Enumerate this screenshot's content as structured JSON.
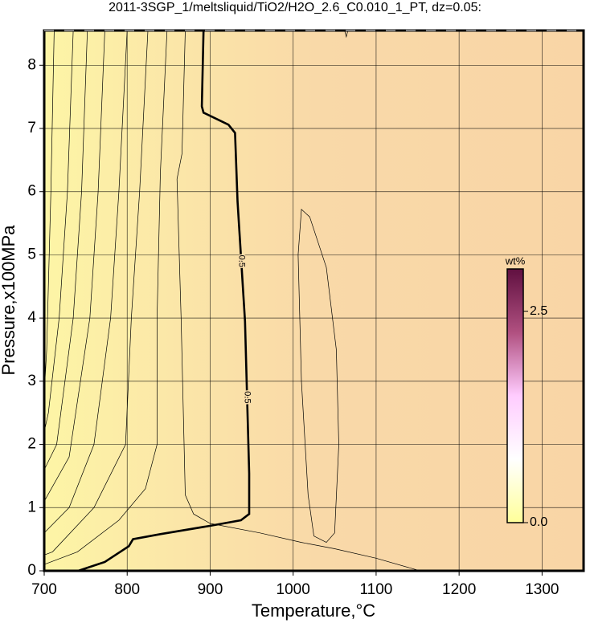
{
  "chart_data": {
    "type": "contour",
    "title": "2011-3SGP_1/meltsliquid/TiO2/H2O_2.6_C0.010_1_PT, dz=0.05:",
    "x_label": "Temperature,°C",
    "y_label": "Pressure,x100MPa",
    "xlim": [
      700,
      1350
    ],
    "ylim": [
      0,
      8.55
    ],
    "xticks": [
      700,
      800,
      900,
      1000,
      1100,
      1200,
      1300
    ],
    "yticks": [
      0,
      1,
      2,
      3,
      4,
      5,
      6,
      7,
      8
    ],
    "grid": true,
    "contours": [
      {
        "level": 0.5,
        "color": "#000000",
        "x": [
          741,
          773,
          802,
          807,
          840,
          899,
          937,
          947,
          947,
          942,
          933,
          930,
          922,
          892,
          890,
          892
        ],
        "y": [
          0,
          0.14,
          0.39,
          0.5,
          0.58,
          0.71,
          0.8,
          0.9,
          1.54,
          3.95,
          5.85,
          6.93,
          7.06,
          7.25,
          7.35,
          8.55
        ]
      },
      {
        "x": [
          712,
          708,
          703,
          700
        ],
        "y": [
          8.55,
          6,
          3.5,
          2.8
        ]
      },
      {
        "x": [
          735,
          728,
          718,
          705,
          700
        ],
        "y": [
          8.55,
          6,
          4,
          2.5,
          2.2
        ]
      },
      {
        "x": [
          752,
          745,
          735,
          715,
          700
        ],
        "y": [
          8.55,
          6,
          4,
          2,
          1.6
        ]
      },
      {
        "x": [
          773,
          765,
          755,
          730,
          700
        ],
        "y": [
          8.55,
          6,
          4,
          1.8,
          1.1
        ]
      },
      {
        "x": [
          800,
          790,
          780,
          760,
          730,
          700
        ],
        "y": [
          8.55,
          6,
          4,
          2,
          1,
          0.6
        ]
      },
      {
        "x": [
          825,
          815,
          805,
          798,
          760,
          710,
          700
        ],
        "y": [
          8.55,
          6,
          4,
          2,
          1,
          0.3,
          0.25
        ]
      },
      {
        "x": [
          848,
          840,
          836,
          836,
          822,
          790,
          740,
          700
        ],
        "y": [
          8.55,
          6.3,
          4,
          2,
          1.3,
          0.8,
          0.3,
          0.1
        ]
      },
      {
        "x": [
          870,
          866,
          860,
          865,
          870,
          880,
          900,
          960,
          1010,
          1050,
          1100,
          1153
        ],
        "y": [
          8.55,
          6.6,
          6.2,
          4,
          1.2,
          0.9,
          0.75,
          0.6,
          0.45,
          0.35,
          0.2,
          0
        ]
      },
      {
        "x": [
          1050,
          1055,
          1052,
          1040,
          1020,
          1010,
          1006,
          1010,
          1018,
          1025,
          1040,
          1050
        ],
        "y": [
          0.6,
          2,
          3.5,
          4.8,
          5.6,
          5.72,
          5,
          3,
          1.2,
          0.55,
          0.45,
          0.6
        ]
      },
      {
        "x": [
          1062,
          1064,
          1066
        ],
        "y": [
          8.55,
          8.45,
          8.55
        ]
      }
    ],
    "colorbar": {
      "label": "wt%",
      "clim": [
        0,
        3.0
      ],
      "ticks": [
        {
          "value": 0,
          "label": "0.0"
        },
        2.5
      ],
      "colors": [
        "#ffff99",
        "#ffffff",
        "#ffccff",
        "#b05080",
        "#601040"
      ]
    }
  }
}
